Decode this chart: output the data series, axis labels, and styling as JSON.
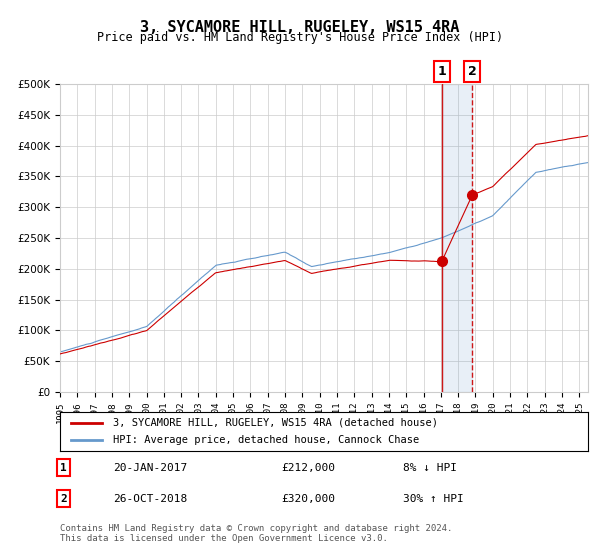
{
  "title": "3, SYCAMORE HILL, RUGELEY, WS15 4RA",
  "subtitle": "Price paid vs. HM Land Registry's House Price Index (HPI)",
  "legend_line1": "3, SYCAMORE HILL, RUGELEY, WS15 4RA (detached house)",
  "legend_line2": "HPI: Average price, detached house, Cannock Chase",
  "transaction1_date": "20-JAN-2017",
  "transaction1_price": 212000,
  "transaction1_hpi": "8% ↓ HPI",
  "transaction2_date": "26-OCT-2018",
  "transaction2_price": 320000,
  "transaction2_hpi": "30% ↑ HPI",
  "xmin": 1995.0,
  "xmax": 2025.5,
  "ymin": 0,
  "ymax": 500000,
  "red_color": "#cc0000",
  "blue_color": "#6699cc",
  "bg_color": "#ffffff",
  "grid_color": "#cccccc",
  "footnote": "Contains HM Land Registry data © Crown copyright and database right 2024.\nThis data is licensed under the Open Government Licence v3.0.",
  "transaction1_x": 2017.05,
  "transaction2_x": 2018.82
}
